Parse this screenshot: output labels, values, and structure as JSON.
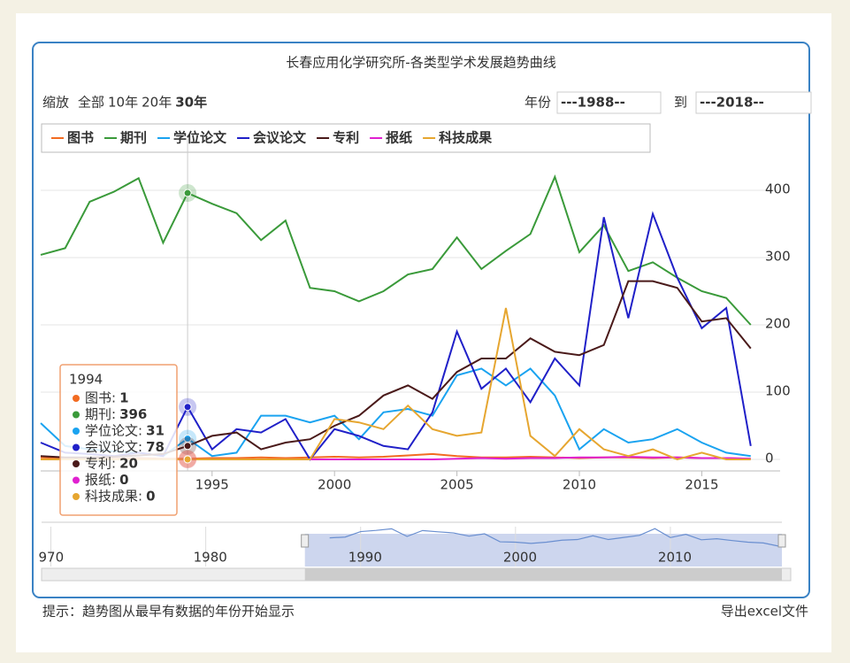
{
  "chart_data": {
    "type": "line",
    "title": "长春应用化学研究所-各类型学术发展趋势曲线",
    "range_selector": {
      "label": "缩放",
      "buttons": [
        "全部",
        "10年",
        "20年",
        "30年"
      ],
      "selected": 3
    },
    "year_input": {
      "label": "年份",
      "from": "---1988--",
      "to_label": "到",
      "to": "---2018--"
    },
    "x": [
      1988,
      1989,
      1990,
      1991,
      1992,
      1993,
      1994,
      1995,
      1996,
      1997,
      1998,
      1999,
      2000,
      2001,
      2002,
      2003,
      2004,
      2005,
      2006,
      2007,
      2008,
      2009,
      2010,
      2011,
      2012,
      2013,
      2014,
      2015,
      2016,
      2017
    ],
    "xlim": [
      1988,
      2018.2
    ],
    "xticks": [
      1995,
      2000,
      2005,
      2010,
      2015
    ],
    "ylim": [
      0,
      450
    ],
    "yticks": [
      0,
      100,
      200,
      300,
      400
    ],
    "grid": true,
    "series": [
      {
        "name": "图书",
        "color": "#f26b21",
        "values": [
          3,
          2,
          2,
          1,
          2,
          1,
          1,
          2,
          2,
          3,
          2,
          3,
          4,
          3,
          4,
          6,
          8,
          5,
          3,
          3,
          4,
          3,
          2,
          3,
          3,
          2,
          3,
          2,
          2,
          1
        ]
      },
      {
        "name": "期刊",
        "color": "#3a9a3a",
        "values": [
          304,
          314,
          383,
          398,
          418,
          322,
          396,
          380,
          366,
          326,
          355,
          255,
          250,
          235,
          250,
          275,
          283,
          330,
          283,
          310,
          335,
          420,
          308,
          348,
          280,
          293,
          270,
          250,
          240,
          200
        ]
      },
      {
        "name": "学位论文",
        "color": "#1aa3f0",
        "values": [
          54,
          20,
          15,
          12,
          10,
          5,
          31,
          5,
          10,
          65,
          65,
          55,
          65,
          30,
          70,
          75,
          65,
          125,
          135,
          110,
          135,
          95,
          15,
          45,
          25,
          30,
          45,
          25,
          10,
          5
        ]
      },
      {
        "name": "会议论文",
        "color": "#2020c8",
        "values": [
          25,
          10,
          8,
          5,
          10,
          5,
          78,
          15,
          45,
          40,
          60,
          0,
          45,
          35,
          20,
          15,
          70,
          190,
          105,
          135,
          85,
          150,
          110,
          360,
          210,
          365,
          270,
          195,
          225,
          20
        ]
      },
      {
        "name": "专利",
        "color": "#4a1a1a",
        "values": [
          5,
          3,
          3,
          4,
          6,
          8,
          20,
          35,
          40,
          15,
          25,
          30,
          50,
          65,
          95,
          110,
          90,
          130,
          150,
          150,
          180,
          160,
          155,
          170,
          265,
          265,
          255,
          205,
          210,
          165
        ]
      },
      {
        "name": "报纸",
        "color": "#e020d0",
        "values": [
          0,
          0,
          0,
          0,
          0,
          0,
          0,
          0,
          0,
          0,
          0,
          0,
          0,
          0,
          0,
          0,
          0,
          1,
          2,
          1,
          2,
          2,
          3,
          3,
          4,
          3,
          3,
          2,
          2,
          1
        ]
      },
      {
        "name": "科技成果",
        "color": "#e6a630",
        "values": [
          0,
          0,
          0,
          0,
          0,
          0,
          0,
          0,
          0,
          0,
          0,
          0,
          60,
          55,
          45,
          80,
          45,
          35,
          40,
          225,
          35,
          5,
          45,
          15,
          5,
          15,
          0,
          10,
          0,
          0
        ]
      }
    ],
    "tooltip": {
      "index": 6,
      "title": "1994",
      "items": [
        {
          "label": "图书:",
          "value": 1
        },
        {
          "label": "期刊:",
          "value": 396
        },
        {
          "label": "学位论文:",
          "value": 31
        },
        {
          "label": "会议论文:",
          "value": 78
        },
        {
          "label": "专利:",
          "value": 20
        },
        {
          "label": "报纸:",
          "value": 0
        },
        {
          "label": "科技成果:",
          "value": 0
        }
      ]
    },
    "navigator": {
      "xlim": [
        1969.4,
        2017.2
      ],
      "xticks": [
        {
          "value": 1970,
          "label": "970"
        },
        1980,
        1990,
        2000,
        2010
      ]
    }
  },
  "footer": {
    "hint": "提示：趋势图从最早有数据的年份开始显示",
    "export": "导出excel文件"
  }
}
